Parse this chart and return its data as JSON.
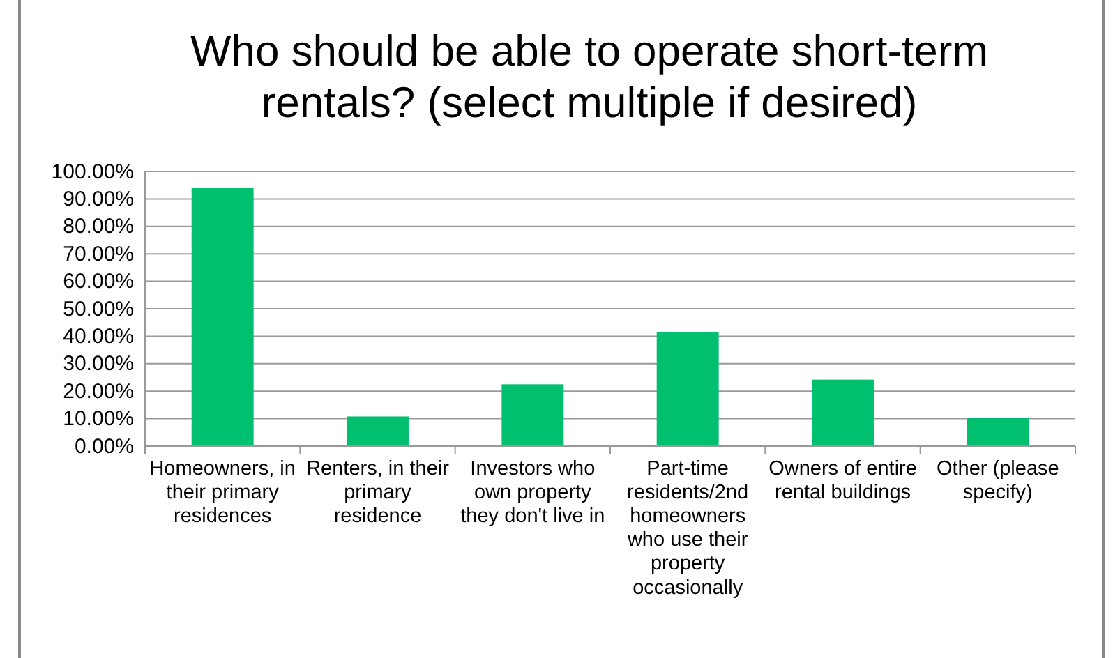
{
  "chart_data": {
    "type": "bar",
    "title": "Who should be able to operate short-term rentals? (select multiple if desired)",
    "categories": [
      "Homeowners, in their primary residences",
      "Renters, in their primary residence",
      "Investors who own property they don't live in",
      "Part-time residents/2nd homeowners who use their property occasionally",
      "Owners of entire rental buildings",
      "Other (please specify)"
    ],
    "values": [
      94.1,
      10.8,
      22.5,
      41.4,
      24.2,
      10.2
    ],
    "color": "#00bf6f",
    "ylim": [
      0,
      100
    ],
    "yticks": [
      {
        "value": 0,
        "label": "0.00%"
      },
      {
        "value": 10,
        "label": "10.00%"
      },
      {
        "value": 20,
        "label": "20.00%"
      },
      {
        "value": 30,
        "label": "30.00%"
      },
      {
        "value": 40,
        "label": "40.00%"
      },
      {
        "value": 50,
        "label": "50.00%"
      },
      {
        "value": 60,
        "label": "60.00%"
      },
      {
        "value": 70,
        "label": "70.00%"
      },
      {
        "value": 80,
        "label": "80.00%"
      },
      {
        "value": 90,
        "label": "90.00%"
      },
      {
        "value": 100,
        "label": "100.00%"
      }
    ],
    "grid": "y"
  }
}
